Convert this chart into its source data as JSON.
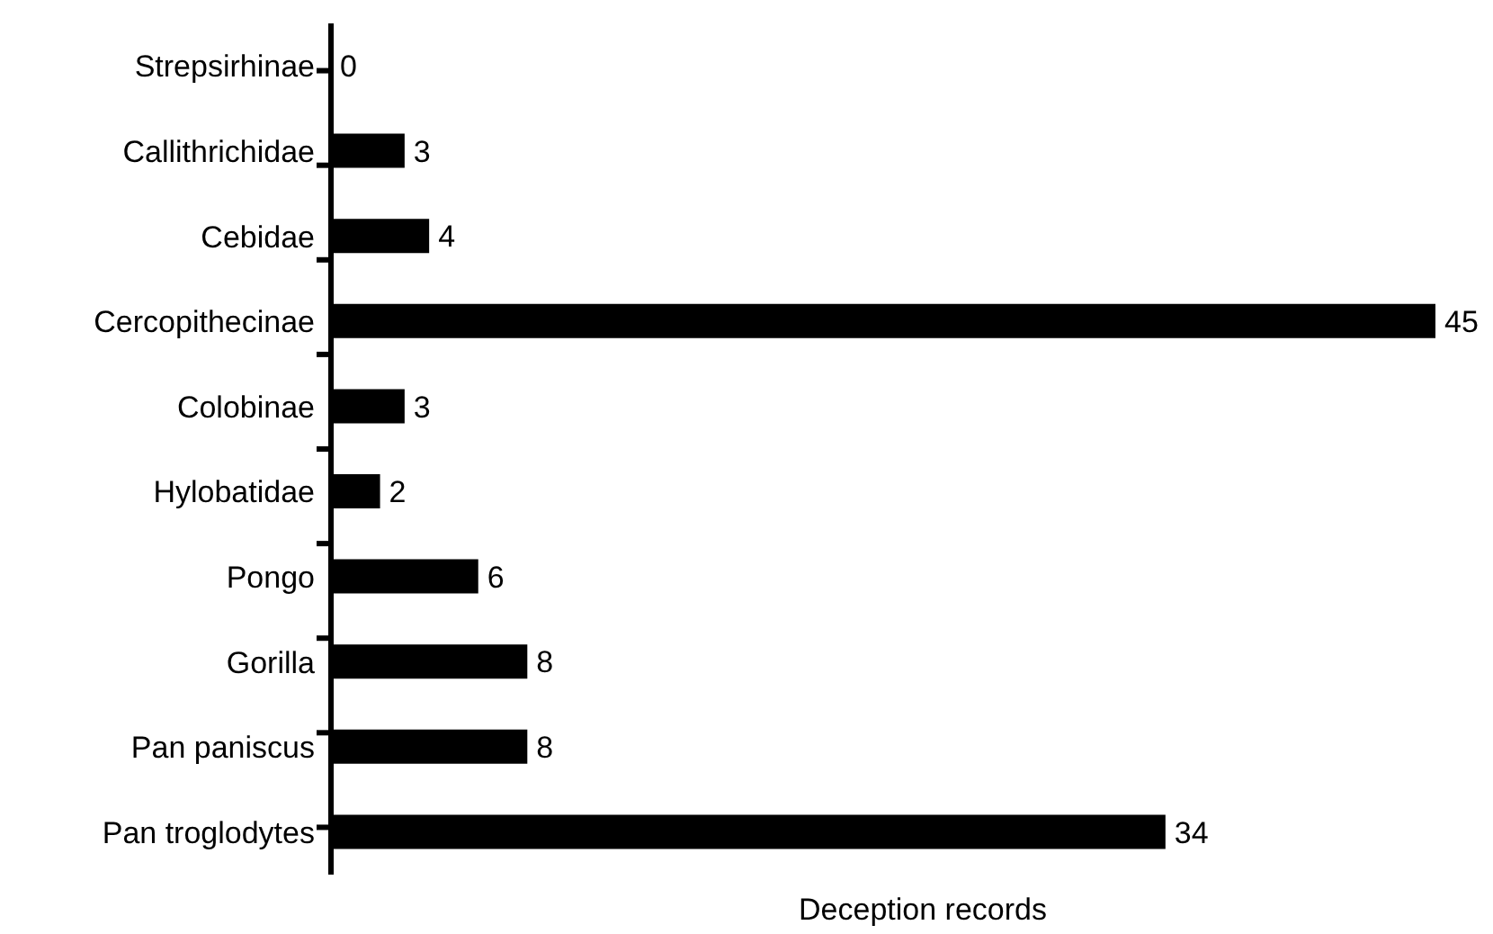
{
  "chart_data": {
    "type": "bar",
    "orientation": "horizontal",
    "xlabel": "Deception records",
    "categories": [
      "Strepsirhinae",
      "Callithrichidae",
      "Cebidae",
      "Cercopithecinae",
      "Colobinae",
      "Hylobatidae",
      "Pongo",
      "Gorilla",
      "Pan paniscus",
      "Pan troglodytes"
    ],
    "values": [
      0,
      3,
      4,
      45,
      3,
      2,
      6,
      8,
      8,
      34
    ],
    "color": "#000000",
    "data_labels": true
  }
}
